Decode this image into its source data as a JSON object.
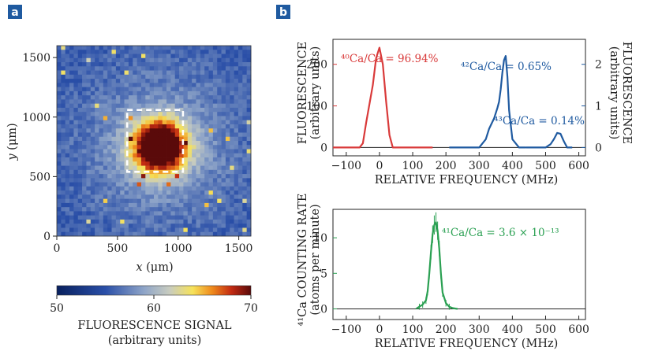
{
  "panel_a": {
    "label": "a",
    "image": {
      "xlabel_var": "x",
      "xlabel_unit": "(μm)",
      "ylabel_var": "y",
      "ylabel_unit": "(μm)",
      "x_ticks": [
        "0",
        "500",
        "1000",
        "1500"
      ],
      "y_ticks": [
        "0",
        "500",
        "1000",
        "1500"
      ],
      "colorbar_ticks": [
        "50",
        "60",
        "70"
      ],
      "colorbar_title": "FLUORESCENCE SIGNAL",
      "colorbar_subtitle": "(arbitrary units)"
    }
  },
  "panel_b": {
    "label": "b"
  },
  "chart_data": [
    {
      "type": "heatmap",
      "xlim": [
        0,
        1600
      ],
      "ylim": [
        0,
        1600
      ],
      "color_range": [
        50,
        70
      ],
      "colormap": [
        "#08205e",
        "#2a4fa8",
        "#8fa5c8",
        "#c8ccc0",
        "#f6e25a",
        "#ef8a1c",
        "#c22a12",
        "#5a0a0a"
      ],
      "hotspot_center_um": [
        850,
        750
      ],
      "box_um": {
        "x": [
          580,
          1040
        ],
        "y": [
          540,
          1060
        ]
      }
    },
    {
      "type": "line",
      "xlabel": "RELATIVE FREQUENCY (MHz)",
      "ylabel_left": "FLUORESCENCE",
      "ylabel_left_sub": "(arbitrary units)",
      "ylabel_right": "FLUORESCENCE",
      "ylabel_right_sub": "(arbitrary units)",
      "x_ticks": [
        "−100",
        "0",
        "100",
        "200",
        "300",
        "400",
        "500",
        "600"
      ],
      "xlim": [
        -140,
        620
      ],
      "y_left_ticks": [
        "0",
        "100",
        "200"
      ],
      "y_left_lim": [
        -20,
        260
      ],
      "y_right_ticks": [
        "0",
        "1",
        "2"
      ],
      "y_right_lim": [
        -0.2,
        2.6
      ],
      "series": [
        {
          "name": "⁴⁰Ca/Ca = 96.94%",
          "color": "#d93a3a",
          "axis": "left",
          "x": [
            -140,
            -60,
            -50,
            -40,
            -30,
            -20,
            -10,
            0,
            10,
            20,
            30,
            40,
            160
          ],
          "y": [
            0,
            0,
            10,
            60,
            105,
            150,
            215,
            240,
            200,
            110,
            30,
            0,
            0
          ]
        },
        {
          "name": "⁴²Ca/Ca = 0.65%",
          "color": "#1f5aa0",
          "axis": "right",
          "x": [
            210,
            300,
            320,
            330,
            345,
            355,
            360,
            365,
            370,
            375,
            380,
            385,
            390,
            400,
            420,
            440
          ],
          "y": [
            0,
            0,
            0.2,
            0.45,
            0.7,
            0.95,
            1.1,
            1.4,
            1.8,
            2.1,
            2.2,
            1.7,
            0.9,
            0.2,
            0,
            0
          ]
        },
        {
          "name": "⁴³Ca/Ca = 0.14%",
          "color": "#1f5aa0",
          "axis": "right",
          "x": [
            440,
            500,
            515,
            525,
            535,
            545,
            555,
            565,
            580
          ],
          "y": [
            0,
            0,
            0.08,
            0.2,
            0.35,
            0.33,
            0.15,
            0,
            0
          ]
        }
      ]
    },
    {
      "type": "line",
      "xlabel": "RELATIVE FREQUENCY (MHz)",
      "ylabel": "⁴¹Ca COUNTING RATE",
      "ylabel_sub": "(atoms per minute)",
      "x_ticks": [
        "−100",
        "0",
        "100",
        "200",
        "300",
        "400",
        "500",
        "600"
      ],
      "xlim": [
        -140,
        620
      ],
      "y_ticks": [
        "0",
        "5",
        "10"
      ],
      "ylim": [
        -1.5,
        14
      ],
      "series": [
        {
          "name": "⁴¹Ca/Ca = 3.6 × 10⁻¹³",
          "color": "#2aa052",
          "x": [
            110,
            120,
            130,
            140,
            145,
            150,
            155,
            160,
            165,
            170,
            175,
            180,
            185,
            190,
            200,
            210,
            220,
            235
          ],
          "y": [
            0,
            0.3,
            0.6,
            1.2,
            2.5,
            5,
            8,
            10.5,
            11.8,
            12.2,
            11,
            8.5,
            5,
            2.3,
            0.8,
            0.3,
            0.1,
            0
          ]
        }
      ]
    }
  ]
}
